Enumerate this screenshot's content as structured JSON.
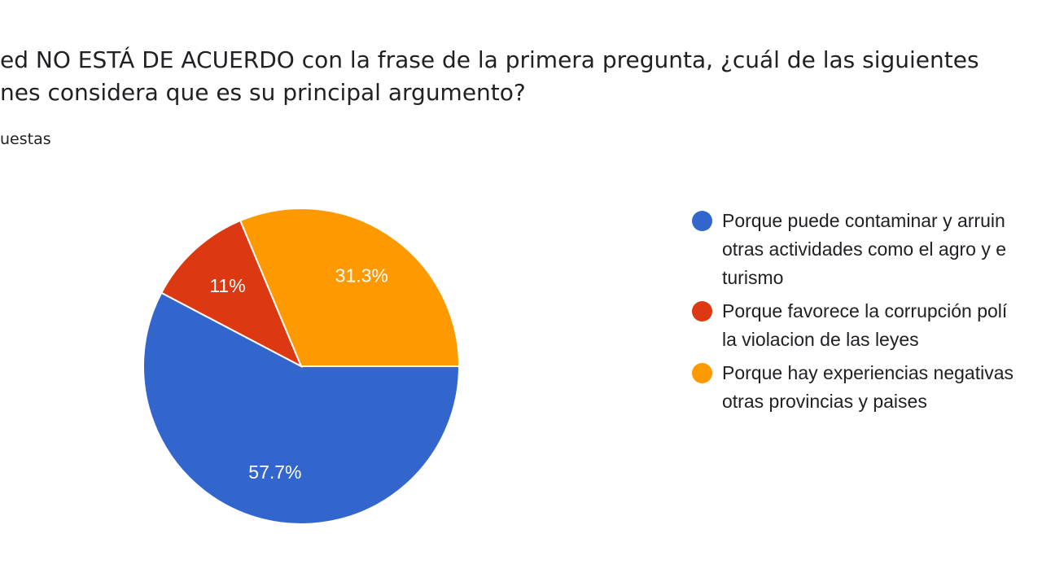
{
  "header": {
    "title_line1": "ed NO ESTÁ DE ACUERDO con la frase de la primera pregunta, ¿cuál de las siguientes",
    "title_line2": "nes considera que es su principal argumento?",
    "subtitle": "uestas"
  },
  "chart_data": {
    "type": "pie",
    "values": [
      57.7,
      11,
      31.3
    ],
    "labels": [
      "57.7%",
      "11%",
      "31.3%"
    ],
    "colors": [
      "#3366cc",
      "#dc3912",
      "#ff9900"
    ],
    "legend": {
      "placement": "right",
      "entries": [
        {
          "label": "Porque puede contaminar y arruin\notras actividades como el agro y e\nturismo",
          "color": "#3366cc"
        },
        {
          "label": "Porque favorece la corrupción polí\nla violacion de las leyes",
          "color": "#dc3912"
        },
        {
          "label": "Porque hay experiencias negativas\notras provincias y paises",
          "color": "#ff9900"
        }
      ]
    }
  }
}
